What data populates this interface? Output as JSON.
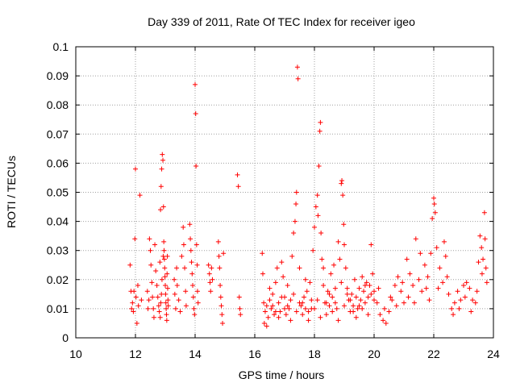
{
  "chart_data": {
    "type": "scatter",
    "title": "Day 339 of 2011, Rate Of TEC Index for receiver igeo",
    "xlabel": "GPS time / hours",
    "ylabel": "ROTI / TECUs",
    "xlim": [
      10,
      24
    ],
    "ylim": [
      0,
      0.1
    ],
    "xticks": [
      "10",
      "12",
      "14",
      "16",
      "18",
      "20",
      "22",
      "24"
    ],
    "yticks": [
      "0",
      "0.01",
      "0.02",
      "0.03",
      "0.04",
      "0.05",
      "0.06",
      "0.07",
      "0.08",
      "0.09",
      "0.1"
    ],
    "grid": true,
    "marker": "+",
    "color": "#ff0000",
    "series": [
      {
        "points": [
          [
            11.82,
            0.025
          ],
          [
            11.85,
            0.016
          ],
          [
            11.87,
            0.01
          ],
          [
            11.9,
            0.012
          ],
          [
            11.93,
            0.009
          ],
          [
            11.95,
            0.016
          ],
          [
            11.98,
            0.034
          ],
          [
            12.0,
            0.058
          ],
          [
            12.02,
            0.014
          ],
          [
            12.05,
            0.005
          ],
          [
            12.08,
            0.018
          ],
          [
            12.1,
            0.011
          ],
          [
            12.15,
            0.049
          ],
          [
            12.2,
            0.013
          ],
          [
            12.4,
            0.016
          ],
          [
            12.42,
            0.01
          ],
          [
            12.45,
            0.013
          ],
          [
            12.47,
            0.034
          ],
          [
            12.5,
            0.03
          ],
          [
            12.52,
            0.025
          ],
          [
            12.55,
            0.019
          ],
          [
            12.57,
            0.014
          ],
          [
            12.6,
            0.01
          ],
          [
            12.62,
            0.007
          ],
          [
            12.65,
            0.032
          ],
          [
            12.68,
            0.023
          ],
          [
            12.72,
            0.018
          ],
          [
            12.75,
            0.014
          ],
          [
            12.78,
            0.011
          ],
          [
            12.8,
            0.009
          ],
          [
            12.82,
            0.026
          ],
          [
            12.84,
            0.044
          ],
          [
            12.86,
            0.052
          ],
          [
            12.88,
            0.058
          ],
          [
            12.9,
            0.063
          ],
          [
            12.92,
            0.061
          ],
          [
            12.94,
            0.045
          ],
          [
            12.95,
            0.033
          ],
          [
            12.96,
            0.03
          ],
          [
            12.97,
            0.027
          ],
          [
            12.98,
            0.024
          ],
          [
            12.99,
            0.021
          ],
          [
            13.0,
            0.018
          ],
          [
            13.01,
            0.015
          ],
          [
            13.02,
            0.012
          ],
          [
            13.03,
            0.01
          ],
          [
            13.04,
            0.008
          ],
          [
            13.05,
            0.006
          ],
          [
            13.06,
            0.022
          ],
          [
            13.07,
            0.028
          ],
          [
            13.08,
            0.017
          ],
          [
            13.09,
            0.013
          ],
          [
            13.1,
            0.011
          ],
          [
            12.87,
            0.015
          ],
          [
            12.89,
            0.02
          ],
          [
            12.93,
            0.028
          ],
          [
            12.85,
            0.012
          ],
          [
            12.83,
            0.007
          ],
          [
            13.3,
            0.02
          ],
          [
            13.32,
            0.015
          ],
          [
            13.35,
            0.01
          ],
          [
            13.38,
            0.024
          ],
          [
            13.4,
            0.018
          ],
          [
            13.45,
            0.013
          ],
          [
            13.5,
            0.009
          ],
          [
            13.55,
            0.028
          ],
          [
            13.6,
            0.038
          ],
          [
            13.62,
            0.032
          ],
          [
            13.65,
            0.024
          ],
          [
            13.68,
            0.016
          ],
          [
            13.7,
            0.011
          ],
          [
            13.82,
            0.039
          ],
          [
            13.84,
            0.034
          ],
          [
            13.86,
            0.03
          ],
          [
            13.88,
            0.026
          ],
          [
            13.9,
            0.022
          ],
          [
            13.92,
            0.018
          ],
          [
            13.94,
            0.014
          ],
          [
            13.96,
            0.01
          ],
          [
            13.98,
            0.008
          ],
          [
            14.0,
            0.087
          ],
          [
            14.02,
            0.077
          ],
          [
            14.03,
            0.059
          ],
          [
            14.05,
            0.032
          ],
          [
            14.07,
            0.025
          ],
          [
            14.08,
            0.016
          ],
          [
            14.1,
            0.012
          ],
          [
            14.45,
            0.025
          ],
          [
            14.48,
            0.022
          ],
          [
            14.5,
            0.019
          ],
          [
            14.52,
            0.016
          ],
          [
            14.55,
            0.024
          ],
          [
            14.58,
            0.02
          ],
          [
            14.78,
            0.033
          ],
          [
            14.8,
            0.028
          ],
          [
            14.82,
            0.024
          ],
          [
            14.84,
            0.018
          ],
          [
            14.86,
            0.014
          ],
          [
            14.88,
            0.011
          ],
          [
            14.9,
            0.008
          ],
          [
            14.92,
            0.005
          ],
          [
            14.95,
            0.029
          ],
          [
            15.42,
            0.056
          ],
          [
            15.45,
            0.052
          ],
          [
            15.48,
            0.014
          ],
          [
            15.5,
            0.01
          ],
          [
            15.52,
            0.008
          ],
          [
            16.25,
            0.029
          ],
          [
            16.27,
            0.022
          ],
          [
            16.3,
            0.012
          ],
          [
            16.32,
            0.005
          ],
          [
            16.35,
            0.009
          ],
          [
            16.4,
            0.011
          ],
          [
            16.45,
            0.007
          ],
          [
            16.5,
            0.013
          ],
          [
            16.55,
            0.01
          ],
          [
            16.6,
            0.015
          ],
          [
            16.65,
            0.008
          ],
          [
            16.7,
            0.019
          ],
          [
            16.75,
            0.024
          ],
          [
            16.8,
            0.012
          ],
          [
            16.85,
            0.009
          ],
          [
            16.9,
            0.026
          ],
          [
            16.95,
            0.021
          ],
          [
            17.0,
            0.014
          ],
          [
            17.05,
            0.008
          ],
          [
            17.1,
            0.018
          ],
          [
            17.15,
            0.01
          ],
          [
            17.2,
            0.013
          ],
          [
            17.25,
            0.028
          ],
          [
            17.3,
            0.036
          ],
          [
            17.35,
            0.04
          ],
          [
            17.38,
            0.046
          ],
          [
            17.4,
            0.05
          ],
          [
            17.43,
            0.093
          ],
          [
            17.45,
            0.089
          ],
          [
            17.5,
            0.024
          ],
          [
            17.55,
            0.011
          ],
          [
            17.6,
            0.008
          ],
          [
            17.65,
            0.014
          ],
          [
            17.7,
            0.01
          ],
          [
            17.75,
            0.016
          ],
          [
            17.8,
            0.009
          ],
          [
            17.85,
            0.019
          ],
          [
            17.9,
            0.013
          ],
          [
            17.95,
            0.03
          ],
          [
            18.0,
            0.038
          ],
          [
            18.05,
            0.045
          ],
          [
            18.1,
            0.049
          ],
          [
            18.12,
            0.042
          ],
          [
            18.15,
            0.059
          ],
          [
            18.18,
            0.071
          ],
          [
            18.2,
            0.074
          ],
          [
            18.22,
            0.036
          ],
          [
            18.25,
            0.027
          ],
          [
            18.3,
            0.018
          ],
          [
            18.35,
            0.012
          ],
          [
            18.4,
            0.008
          ],
          [
            18.45,
            0.016
          ],
          [
            18.5,
            0.011
          ],
          [
            18.55,
            0.022
          ],
          [
            18.6,
            0.014
          ],
          [
            18.65,
            0.025
          ],
          [
            18.7,
            0.017
          ],
          [
            18.75,
            0.01
          ],
          [
            18.8,
            0.033
          ],
          [
            18.85,
            0.027
          ],
          [
            18.9,
            0.053
          ],
          [
            18.92,
            0.054
          ],
          [
            18.95,
            0.049
          ],
          [
            18.98,
            0.039
          ],
          [
            19.0,
            0.032
          ],
          [
            19.05,
            0.024
          ],
          [
            19.1,
            0.017
          ],
          [
            19.15,
            0.013
          ],
          [
            19.2,
            0.009
          ],
          [
            19.25,
            0.015
          ],
          [
            19.3,
            0.011
          ],
          [
            19.35,
            0.02
          ],
          [
            19.4,
            0.014
          ],
          [
            19.45,
            0.01
          ],
          [
            19.5,
            0.017
          ],
          [
            19.55,
            0.013
          ],
          [
            19.6,
            0.021
          ],
          [
            19.65,
            0.016
          ],
          [
            19.7,
            0.012
          ],
          [
            19.75,
            0.019
          ],
          [
            19.8,
            0.014
          ],
          [
            19.85,
            0.018
          ],
          [
            19.9,
            0.032
          ],
          [
            19.95,
            0.022
          ],
          [
            20.0,
            0.016
          ],
          [
            16.4,
            0.004
          ],
          [
            16.6,
            0.011
          ],
          [
            16.8,
            0.007
          ],
          [
            17.0,
            0.01
          ],
          [
            17.2,
            0.006
          ],
          [
            17.4,
            0.009
          ],
          [
            17.6,
            0.012
          ],
          [
            17.8,
            0.006
          ],
          [
            18.0,
            0.01
          ],
          [
            18.2,
            0.007
          ],
          [
            18.4,
            0.012
          ],
          [
            18.6,
            0.009
          ],
          [
            18.8,
            0.006
          ],
          [
            19.0,
            0.011
          ],
          [
            19.2,
            0.013
          ],
          [
            19.4,
            0.007
          ],
          [
            19.6,
            0.01
          ],
          [
            19.8,
            0.008
          ],
          [
            20.0,
            0.013
          ],
          [
            16.5,
            0.017
          ],
          [
            16.7,
            0.009
          ],
          [
            16.9,
            0.014
          ],
          [
            17.1,
            0.011
          ],
          [
            17.3,
            0.015
          ],
          [
            17.5,
            0.012
          ],
          [
            17.7,
            0.02
          ],
          [
            17.9,
            0.01
          ],
          [
            18.1,
            0.013
          ],
          [
            18.3,
            0.024
          ],
          [
            18.5,
            0.015
          ],
          [
            18.7,
            0.012
          ],
          [
            18.9,
            0.019
          ],
          [
            19.1,
            0.015
          ],
          [
            19.3,
            0.009
          ],
          [
            19.5,
            0.011
          ],
          [
            19.7,
            0.018
          ],
          [
            19.9,
            0.015
          ],
          [
            20.1,
            0.012
          ],
          [
            20.2,
            0.008
          ],
          [
            20.3,
            0.006
          ],
          [
            20.4,
            0.005
          ],
          [
            20.5,
            0.009
          ],
          [
            20.6,
            0.013
          ],
          [
            20.7,
            0.018
          ],
          [
            20.8,
            0.021
          ],
          [
            20.9,
            0.016
          ],
          [
            21.0,
            0.012
          ],
          [
            21.1,
            0.027
          ],
          [
            21.2,
            0.022
          ],
          [
            21.3,
            0.018
          ],
          [
            21.4,
            0.034
          ],
          [
            21.5,
            0.02
          ],
          [
            21.6,
            0.016
          ],
          [
            21.7,
            0.025
          ],
          [
            21.8,
            0.021
          ],
          [
            21.9,
            0.029
          ],
          [
            21.95,
            0.041
          ],
          [
            22.0,
            0.048
          ],
          [
            22.02,
            0.046
          ],
          [
            22.05,
            0.043
          ],
          [
            22.1,
            0.031
          ],
          [
            22.2,
            0.024
          ],
          [
            22.3,
            0.019
          ],
          [
            22.35,
            0.033
          ],
          [
            22.4,
            0.028
          ],
          [
            22.5,
            0.015
          ],
          [
            22.6,
            0.01
          ],
          [
            22.7,
            0.012
          ],
          [
            22.8,
            0.016
          ],
          [
            22.9,
            0.013
          ],
          [
            23.0,
            0.018
          ],
          [
            23.1,
            0.019
          ],
          [
            23.2,
            0.017
          ],
          [
            23.3,
            0.013
          ],
          [
            23.4,
            0.012
          ],
          [
            23.5,
            0.026
          ],
          [
            23.55,
            0.035
          ],
          [
            23.6,
            0.031
          ],
          [
            23.65,
            0.027
          ],
          [
            23.7,
            0.043
          ],
          [
            23.72,
            0.034
          ],
          [
            23.75,
            0.024
          ],
          [
            23.78,
            0.019
          ],
          [
            20.15,
            0.017
          ],
          [
            20.35,
            0.01
          ],
          [
            20.55,
            0.014
          ],
          [
            20.75,
            0.011
          ],
          [
            20.95,
            0.019
          ],
          [
            21.15,
            0.014
          ],
          [
            21.35,
            0.012
          ],
          [
            21.55,
            0.029
          ],
          [
            21.75,
            0.017
          ],
          [
            21.85,
            0.013
          ],
          [
            22.15,
            0.017
          ],
          [
            22.45,
            0.021
          ],
          [
            22.65,
            0.008
          ],
          [
            22.85,
            0.01
          ],
          [
            23.05,
            0.014
          ],
          [
            23.25,
            0.009
          ],
          [
            23.45,
            0.016
          ],
          [
            23.62,
            0.022
          ]
        ]
      }
    ]
  }
}
